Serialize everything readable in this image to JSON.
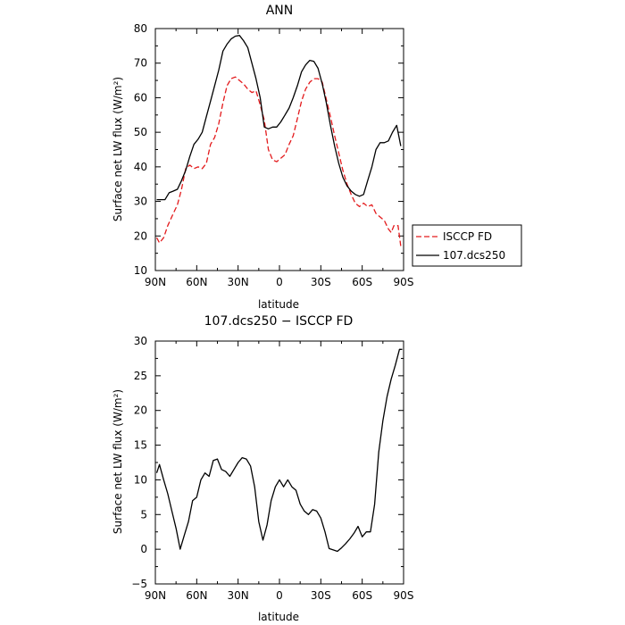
{
  "chart_data": [
    {
      "type": "line",
      "title": "ANN",
      "xlabel": "latitude",
      "ylabel": "Surface net LW flux (W/m²)",
      "xlim": [
        90,
        -90
      ],
      "ylim": [
        10,
        80
      ],
      "x_ticks": [
        90,
        60,
        30,
        0,
        -30,
        -60,
        -90
      ],
      "x_tick_labels": [
        "90N",
        "60N",
        "30N",
        "0",
        "30S",
        "60S",
        "90S"
      ],
      "y_ticks": [
        10,
        20,
        30,
        40,
        50,
        60,
        70,
        80
      ],
      "legend_position": "right, outside plot",
      "series": [
        {
          "name": "ISCCP FD",
          "color": "#e31a1c",
          "dash": "dashed",
          "points": [
            [
              89,
              19.5
            ],
            [
              87,
              18.0
            ],
            [
              84,
              19.5
            ],
            [
              81,
              23.0
            ],
            [
              77,
              26.5
            ],
            [
              74,
              29.0
            ],
            [
              71,
              33.5
            ],
            [
              68,
              39.5
            ],
            [
              65,
              40.5
            ],
            [
              62,
              39.5
            ],
            [
              59,
              40.0
            ],
            [
              56,
              39.5
            ],
            [
              53,
              41.0
            ],
            [
              50,
              46.5
            ],
            [
              47,
              48.5
            ],
            [
              44,
              52.5
            ],
            [
              41,
              58.5
            ],
            [
              38,
              63.5
            ],
            [
              35,
              65.5
            ],
            [
              32,
              66.0
            ],
            [
              29,
              65.0
            ],
            [
              26,
              64.0
            ],
            [
              23,
              62.5
            ],
            [
              20,
              61.5
            ],
            [
              17,
              62.0
            ],
            [
              14,
              58.0
            ],
            [
              11,
              53.5
            ],
            [
              8,
              45.0
            ],
            [
              5,
              42.0
            ],
            [
              2,
              41.5
            ],
            [
              -1,
              42.5
            ],
            [
              -4,
              43.5
            ],
            [
              -7,
              46.5
            ],
            [
              -10,
              49.0
            ],
            [
              -13,
              54.0
            ],
            [
              -16,
              59.0
            ],
            [
              -19,
              62.5
            ],
            [
              -22,
              64.5
            ],
            [
              -25,
              65.5
            ],
            [
              -28,
              65.5
            ],
            [
              -31,
              64.5
            ],
            [
              -34,
              59.5
            ],
            [
              -37,
              54.5
            ],
            [
              -40,
              49.0
            ],
            [
              -43,
              44.0
            ],
            [
              -46,
              39.0
            ],
            [
              -49,
              35.0
            ],
            [
              -52,
              32.0
            ],
            [
              -55,
              29.5
            ],
            [
              -58,
              28.5
            ],
            [
              -61,
              29.5
            ],
            [
              -64,
              28.5
            ],
            [
              -67,
              29.0
            ],
            [
              -70,
              26.5
            ],
            [
              -73,
              25.5
            ],
            [
              -76,
              24.5
            ],
            [
              -79,
              22.0
            ],
            [
              -81,
              21.0
            ],
            [
              -83,
              23.0
            ],
            [
              -86,
              23.0
            ],
            [
              -88,
              17.0
            ]
          ]
        },
        {
          "name": "107.dcs250",
          "color": "#000000",
          "dash": "solid",
          "points": [
            [
              89,
              30.5
            ],
            [
              86,
              30.5
            ],
            [
              83,
              30.5
            ],
            [
              80,
              32.5
            ],
            [
              77,
              33.0
            ],
            [
              74,
              33.5
            ],
            [
              71,
              36.0
            ],
            [
              68,
              39.0
            ],
            [
              65,
              43.0
            ],
            [
              62,
              46.5
            ],
            [
              59,
              48.0
            ],
            [
              56,
              50.0
            ],
            [
              53,
              54.5
            ],
            [
              50,
              59.0
            ],
            [
              47,
              63.5
            ],
            [
              44,
              68.0
            ],
            [
              41,
              73.5
            ],
            [
              38,
              75.5
            ],
            [
              35,
              77.0
            ],
            [
              32,
              77.8
            ],
            [
              29,
              78.0
            ],
            [
              26,
              76.5
            ],
            [
              23,
              74.5
            ],
            [
              20,
              70.0
            ],
            [
              17,
              65.5
            ],
            [
              14,
              60.0
            ],
            [
              11,
              51.5
            ],
            [
              8,
              51.0
            ],
            [
              5,
              51.5
            ],
            [
              2,
              51.5
            ],
            [
              -1,
              53.0
            ],
            [
              -4,
              55.0
            ],
            [
              -7,
              57.0
            ],
            [
              -10,
              60.0
            ],
            [
              -13,
              63.5
            ],
            [
              -16,
              67.5
            ],
            [
              -19,
              69.5
            ],
            [
              -22,
              70.8
            ],
            [
              -25,
              70.5
            ],
            [
              -28,
              68.5
            ],
            [
              -31,
              64.0
            ],
            [
              -34,
              58.5
            ],
            [
              -37,
              52.0
            ],
            [
              -40,
              46.0
            ],
            [
              -43,
              41.0
            ],
            [
              -46,
              37.0
            ],
            [
              -49,
              34.5
            ],
            [
              -52,
              33.0
            ],
            [
              -55,
              32.0
            ],
            [
              -58,
              31.5
            ],
            [
              -61,
              32.0
            ],
            [
              -64,
              36.0
            ],
            [
              -67,
              40.0
            ],
            [
              -70,
              45.0
            ],
            [
              -73,
              47.0
            ],
            [
              -76,
              47.0
            ],
            [
              -79,
              47.5
            ],
            [
              -82,
              50.0
            ],
            [
              -85,
              52.0
            ],
            [
              -88,
              46.0
            ]
          ]
        }
      ]
    },
    {
      "type": "line",
      "title": "107.dcs250 − ISCCP FD",
      "xlabel": "latitude",
      "ylabel": "Surface net LW flux (W/m²)",
      "xlim": [
        90,
        -90
      ],
      "ylim": [
        -5,
        30
      ],
      "x_ticks": [
        90,
        60,
        30,
        0,
        -30,
        -60,
        -90
      ],
      "x_tick_labels": [
        "90N",
        "60N",
        "30N",
        "0",
        "30S",
        "60S",
        "90S"
      ],
      "y_ticks": [
        -5,
        0,
        5,
        10,
        15,
        20,
        25,
        30
      ],
      "y_tick_labels": [
        "−5",
        "0",
        "5",
        "10",
        "15",
        "20",
        "25",
        "30"
      ],
      "series": [
        {
          "color": "#000000",
          "dash": "solid",
          "points": [
            [
              89,
              11.0
            ],
            [
              87,
              12.2
            ],
            [
              84,
              10.0
            ],
            [
              81,
              8.0
            ],
            [
              78,
              5.5
            ],
            [
              75,
              3.0
            ],
            [
              72,
              0.0
            ],
            [
              69,
              2.0
            ],
            [
              66,
              4.0
            ],
            [
              63,
              7.0
            ],
            [
              60,
              7.5
            ],
            [
              57,
              10.0
            ],
            [
              54,
              11.0
            ],
            [
              51,
              10.5
            ],
            [
              48,
              12.8
            ],
            [
              45,
              13.0
            ],
            [
              42,
              11.5
            ],
            [
              39,
              11.2
            ],
            [
              36,
              10.5
            ],
            [
              33,
              11.5
            ],
            [
              30,
              12.5
            ],
            [
              27,
              13.2
            ],
            [
              24,
              13.0
            ],
            [
              21,
              12.0
            ],
            [
              18,
              9.0
            ],
            [
              15,
              4.0
            ],
            [
              12,
              1.3
            ],
            [
              9,
              3.5
            ],
            [
              6,
              7.0
            ],
            [
              3,
              9.0
            ],
            [
              0,
              10.0
            ],
            [
              -3,
              9.0
            ],
            [
              -6,
              10.0
            ],
            [
              -9,
              9.0
            ],
            [
              -12,
              8.5
            ],
            [
              -15,
              6.5
            ],
            [
              -18,
              5.5
            ],
            [
              -21,
              5.0
            ],
            [
              -24,
              5.7
            ],
            [
              -27,
              5.5
            ],
            [
              -30,
              4.5
            ],
            [
              -33,
              2.5
            ],
            [
              -36,
              0.1
            ],
            [
              -39,
              -0.1
            ],
            [
              -42,
              -0.3
            ],
            [
              -45,
              0.2
            ],
            [
              -48,
              0.8
            ],
            [
              -51,
              1.5
            ],
            [
              -54,
              2.3
            ],
            [
              -57,
              3.3
            ],
            [
              -60,
              1.8
            ],
            [
              -63,
              2.5
            ],
            [
              -66,
              2.5
            ],
            [
              -69,
              6.5
            ],
            [
              -72,
              14.0
            ],
            [
              -75,
              18.5
            ],
            [
              -78,
              22.0
            ],
            [
              -81,
              24.5
            ],
            [
              -84,
              26.5
            ],
            [
              -87,
              28.8
            ],
            [
              -89,
              28.8
            ]
          ]
        }
      ]
    }
  ]
}
